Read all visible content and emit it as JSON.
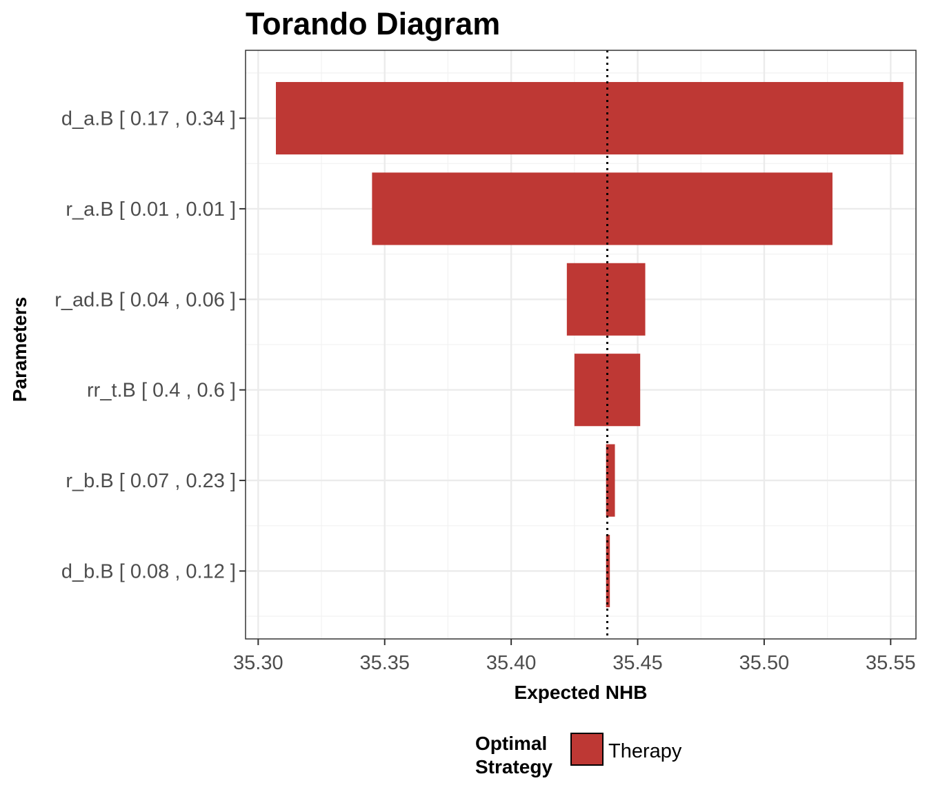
{
  "chart_data": {
    "type": "bar",
    "orientation": "horizontal",
    "title": "Torando Diagram",
    "xlabel": "Expected NHB",
    "ylabel": "Parameters",
    "xlim": [
      35.295,
      35.56
    ],
    "xticks": [
      "35.30",
      "35.35",
      "35.40",
      "35.45",
      "35.50",
      "35.55"
    ],
    "base_value": 35.438,
    "categories": [
      "d_a.B [ 0.17 , 0.34 ]",
      "r_a.B [ 0.01 , 0.01 ]",
      "r_ad.B [ 0.04 , 0.06 ]",
      "rr_t.B [ 0.4 , 0.6 ]",
      "r_b.B [ 0.07 , 0.23 ]",
      "d_b.B [ 0.08 , 0.12 ]"
    ],
    "series": [
      {
        "name": "Therapy",
        "low": [
          35.307,
          35.345,
          35.422,
          35.425,
          35.4375,
          35.4375
        ],
        "high": [
          35.555,
          35.527,
          35.453,
          35.451,
          35.441,
          35.439
        ]
      }
    ],
    "grid": true,
    "legend": {
      "position": "bottom",
      "title_lines": [
        "Optimal",
        "Strategy"
      ],
      "entries": [
        "Therapy"
      ]
    },
    "colors": {
      "bar": "#be3834",
      "grid_major": "#ebebeb",
      "grid_minor": "#f2f2f2",
      "panel_border": "#333333",
      "base_line": "#000000"
    }
  }
}
